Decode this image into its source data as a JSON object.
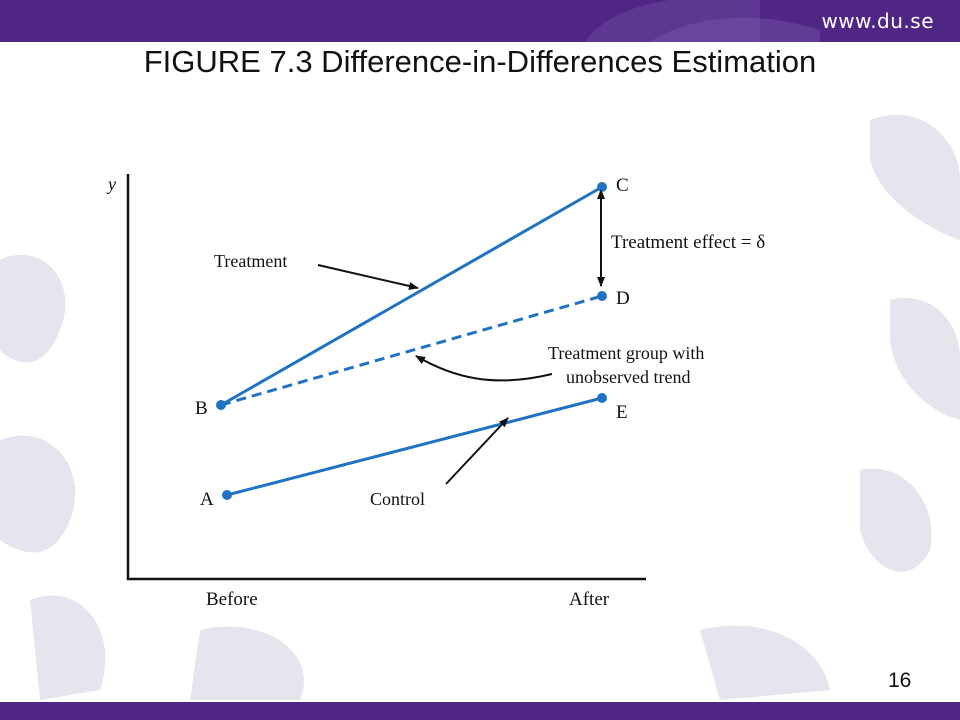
{
  "header": {
    "url": "www.du.se"
  },
  "slide": {
    "title": "FIGURE 7.3 Difference-in-Differences Estimation",
    "number": "16"
  },
  "diagram": {
    "y_axis_label": "y",
    "x_tick_before": "Before",
    "x_tick_after": "After",
    "points": {
      "a": "A",
      "b": "B",
      "c": "C",
      "d": "D",
      "e": "E"
    },
    "labels": {
      "treatment": "Treatment",
      "control": "Control",
      "unobserved_line1": "Treatment group with",
      "unobserved_line2": "unobserved trend",
      "effect": "Treatment effect = δ"
    },
    "colors": {
      "line": "#1f73c2",
      "brand": "#4f2683",
      "arrow": "#111111"
    }
  }
}
